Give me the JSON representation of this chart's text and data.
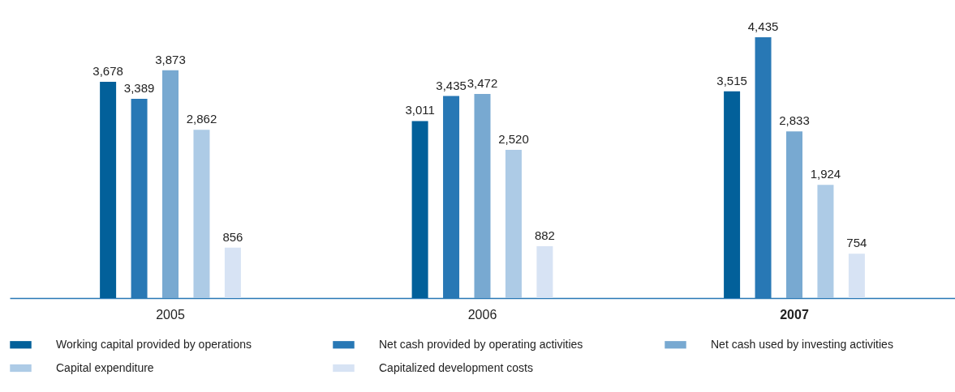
{
  "chart_data": {
    "type": "bar",
    "categories": [
      "2005",
      "2006",
      "2007"
    ],
    "series": [
      {
        "name": "Working capital provided by operations",
        "color": "#02609a",
        "values": [
          3678,
          3011,
          3515
        ],
        "value_labels": [
          "3,678",
          "3,011",
          "3,515"
        ]
      },
      {
        "name": "Net cash provided by operating activities",
        "color": "#2878b5",
        "values": [
          3389,
          3435,
          4435
        ],
        "value_labels": [
          "3,389",
          "3,435",
          "4,435"
        ]
      },
      {
        "name": "Net cash used by investing activities",
        "color": "#78a9d1",
        "values": [
          3873,
          3472,
          2833
        ],
        "value_labels": [
          "3,873",
          "3,472",
          "2,833"
        ]
      },
      {
        "name": "Capital expenditure",
        "color": "#adcbe6",
        "values": [
          2862,
          2520,
          1924
        ],
        "value_labels": [
          "2,862",
          "2,520",
          "1,924"
        ]
      },
      {
        "name": "Capitalized development costs",
        "color": "#d7e3f4",
        "values": [
          856,
          882,
          754
        ],
        "value_labels": [
          "856",
          "882",
          "754"
        ]
      }
    ],
    "legend": "bottom",
    "grid": false
  }
}
